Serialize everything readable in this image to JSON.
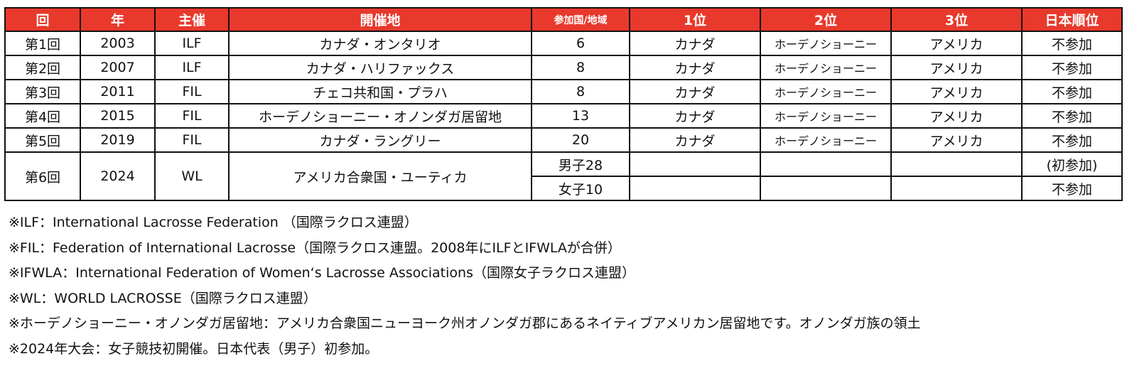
{
  "table": {
    "headers": [
      "回",
      "年",
      "主催",
      "開催地",
      "参加国/地域",
      "1位",
      "2位",
      "3位",
      "日本順位"
    ],
    "rows": [
      {
        "kai": "第1回",
        "year": "2003",
        "org": "ILF",
        "venue": "カナダ・オンタリオ",
        "countries": "6",
        "first": "カナダ",
        "second": "ホーデノショーニー",
        "third": "アメリカ",
        "japan": "不参加"
      },
      {
        "kai": "第2回",
        "year": "2007",
        "org": "ILF",
        "venue": "カナダ・ハリファックス",
        "countries": "8",
        "first": "カナダ",
        "second": "ホーデノショーニー",
        "third": "アメリカ",
        "japan": "不参加"
      },
      {
        "kai": "第3回",
        "year": "2011",
        "org": "FIL",
        "venue": "チェコ共和国・プラハ",
        "countries": "8",
        "first": "カナダ",
        "second": "ホーデノショーニー",
        "third": "アメリカ",
        "japan": "不参加"
      },
      {
        "kai": "第4回",
        "year": "2015",
        "org": "FIL",
        "venue": "ホーデノショーニー・オノンダガ居留地",
        "countries": "13",
        "first": "カナダ",
        "second": "ホーデノショーニー",
        "third": "アメリカ",
        "japan": "不参加"
      },
      {
        "kai": "第5回",
        "year": "2019",
        "org": "FIL",
        "venue": "カナダ・ラングリー",
        "countries": "20",
        "first": "カナダ",
        "second": "ホーデノショーニー",
        "third": "アメリカ",
        "japan": "不参加"
      }
    ],
    "row6": {
      "kai": "第6回",
      "year": "2024",
      "org": "WL",
      "venue": "アメリカ合衆国・ユーティカ",
      "men": {
        "countries": "男子28",
        "first": "",
        "second": "",
        "third": "",
        "japan": "(初参加)"
      },
      "women": {
        "countries": "女子10",
        "first": "",
        "second": "",
        "third": "",
        "japan": "不参加"
      }
    }
  },
  "notes": [
    "※ILF：International Lacrosse Federation （国際ラクロス連盟）",
    "※FIL：Federation of International Lacrosse（国際ラクロス連盟。2008年にILFとIFWLAが合併）",
    "※IFWLA：International Federation of Women‘s Lacrosse Associations（国際女子ラクロス連盟）",
    "※WL：WORLD LACROSSE（国際ラクロス連盟）",
    "※ホーデノショーニー・オノンダガ居留地：アメリカ合衆国ニューヨーク州オノンダガ郡にあるネイティブアメリカン居留地です。オノンダガ族の領土",
    "※2024年大会：女子競技初開催。日本代表（男子）初参加。"
  ]
}
